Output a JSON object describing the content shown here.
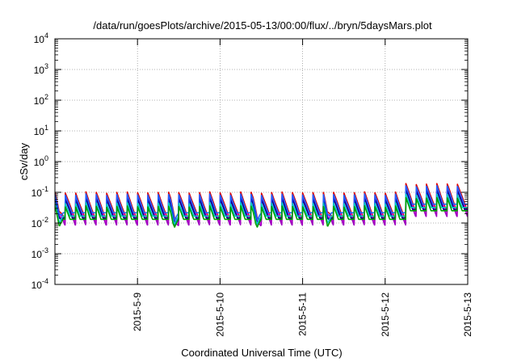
{
  "chart_data": {
    "type": "line",
    "title": "/data/run/goesPlots/archive/2015-05-13/00:00/flux/../bryn/5daysMars.plot",
    "xlabel": "Coordinated Universal Time (UTC)",
    "ylabel": "cSv/day",
    "x_tick_labels": [
      "2015-5-9",
      "2015-5-10",
      "2015-5-11",
      "2015-5-12",
      "2015-5-13"
    ],
    "xlim_days": [
      8.0,
      13.0
    ],
    "x_tick_days": [
      9,
      10,
      11,
      12,
      13
    ],
    "y_scale": "log",
    "ylim": [
      0.0001,
      10000
    ],
    "y_ticks": [
      {
        "base": "10",
        "exp": "4"
      },
      {
        "base": "10",
        "exp": "3"
      },
      {
        "base": "10",
        "exp": "2"
      },
      {
        "base": "10",
        "exp": "1"
      },
      {
        "base": "10",
        "exp": "0"
      },
      {
        "base": "10",
        "exp": "-1"
      },
      {
        "base": "10",
        "exp": "-2"
      },
      {
        "base": "10",
        "exp": "-3"
      },
      {
        "base": "10",
        "exp": "-4"
      }
    ],
    "grid": true,
    "pattern": {
      "period_hours": 3,
      "decay_rate_per_hour": 0.72,
      "enhanced_from_day": 12.25,
      "enhancement_factor": 1.9,
      "dip_days": [
        8.05,
        9.45,
        10.45,
        11.3
      ]
    },
    "series": [
      {
        "color": "#e00000",
        "peak": 0.1,
        "low": 0.004
      },
      {
        "color": "#ff00ff",
        "peak": 0.082,
        "low": 0.003
      },
      {
        "color": "#a000c0",
        "peak": 0.07,
        "low": 0.0036
      },
      {
        "color": "#00008b",
        "peak": 0.062,
        "low": 0.006
      },
      {
        "color": "#2060ff",
        "peak": 0.085,
        "low": 0.009
      },
      {
        "color": "#00c8c8",
        "peak": 0.045,
        "low": 0.007
      },
      {
        "color": "#00a000",
        "peak": 0.035,
        "low": 0.0055
      }
    ]
  }
}
